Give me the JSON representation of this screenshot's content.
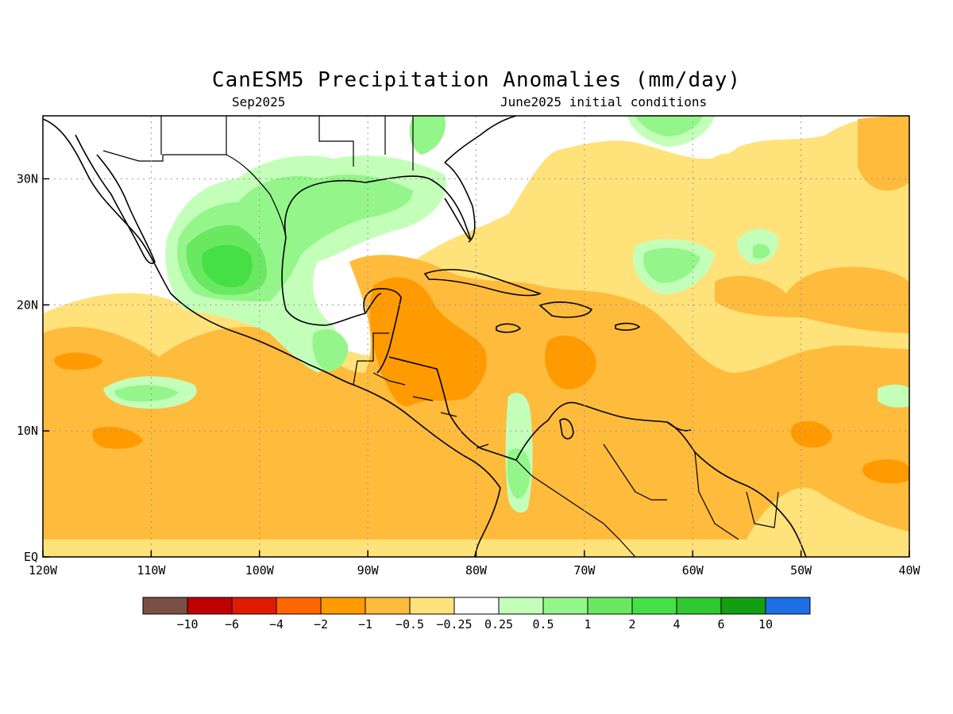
{
  "title": "CanESM5 Precipitation Anomalies (mm/day)",
  "subtitle_left": "Sep2025",
  "subtitle_right": "June2025 initial conditions",
  "map": {
    "lon_range": [
      -120,
      -40
    ],
    "lat_range": [
      0,
      35
    ],
    "grid": true,
    "x_ticks": [
      "120W",
      "110W",
      "100W",
      "90W",
      "80W",
      "70W",
      "60W",
      "50W",
      "40W"
    ],
    "y_ticks": [
      "EQ",
      "10N",
      "20N",
      "30N"
    ]
  },
  "colorbar": {
    "labels": [
      "−10",
      "−6",
      "−4",
      "−2",
      "−1",
      "−0.5",
      "−0.25",
      "0.25",
      "0.5",
      "1",
      "2",
      "4",
      "6",
      "10"
    ],
    "colors": [
      "#7b4f45",
      "#c00000",
      "#e01c00",
      "#ff6600",
      "#ff9a00",
      "#ffbb3c",
      "#ffe27a",
      "#ffffff",
      "#c4ffba",
      "#94f58a",
      "#6ae862",
      "#46e046",
      "#30c830",
      "#12a012",
      "#1e6ee6"
    ]
  },
  "colors": {
    "neg_light": "#ffe27a",
    "neg_mid": "#ffbb3c",
    "neg_strong": "#ff9a00",
    "pos_light": "#c4ffba",
    "pos_mid": "#94f58a",
    "pos_strong": "#6ae862",
    "pos_max": "#46e046"
  }
}
